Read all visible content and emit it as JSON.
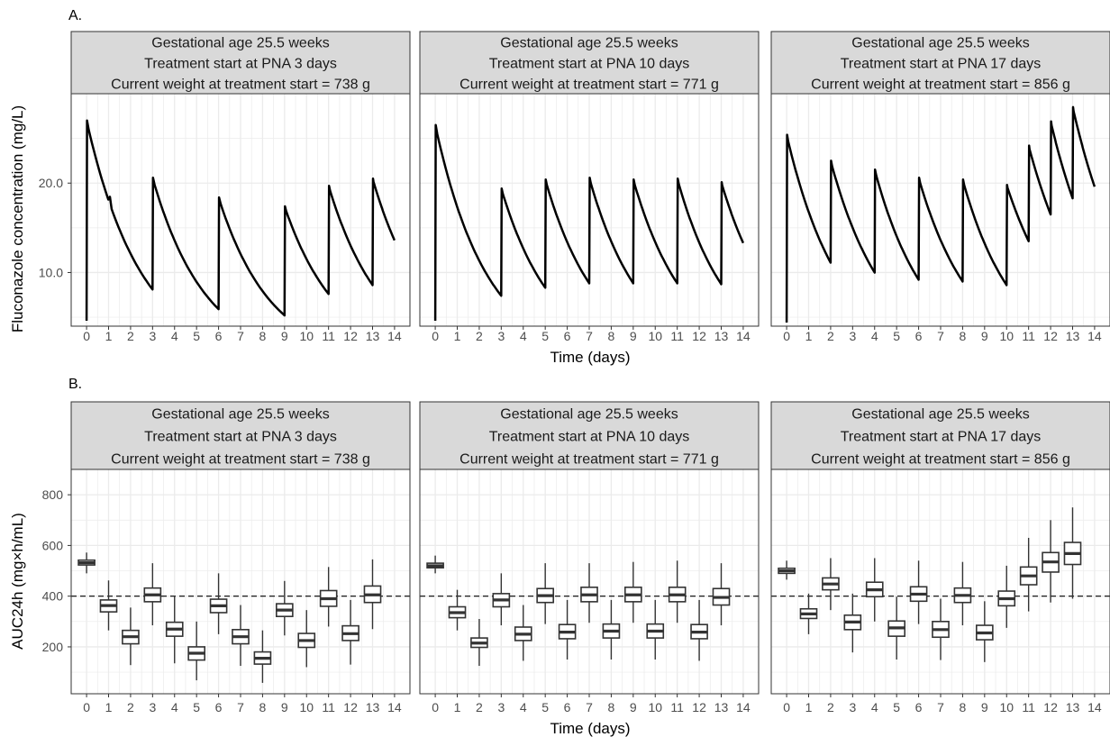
{
  "figure": {
    "panel_a_tag": "A.",
    "panel_b_tag": "B.",
    "strip_lines": [
      [
        "Gestational age 25.5 weeks",
        "Treatment start at PNA 3 days",
        "Current weight at treatment start = 738 g"
      ],
      [
        "Gestational age 25.5 weeks",
        "Treatment start at PNA 10 days",
        "Current weight at treatment start = 771 g"
      ],
      [
        "Gestational age 25.5 weeks",
        "Treatment start at PNA 17 days",
        "Current weight at treatment start = 856 g"
      ]
    ],
    "a_ylabel": "Fluconazole concentration (mg/L)",
    "b_ylabel": "AUC24h (mg×h/mL)",
    "xlabel": "Time (days)",
    "colors": {
      "strip_fill": "#d9d9d9",
      "grid": "#ebebeb",
      "line": "#000000",
      "box": "#333333"
    }
  },
  "chart_data": [
    {
      "type": "line",
      "panel": "A",
      "ylim": [
        4,
        30
      ],
      "xlim": [
        -0.7,
        14.7
      ],
      "y_ticks": [
        10,
        20
      ],
      "y_tick_labels": [
        "10.0",
        "20.0"
      ],
      "x_ticks": [
        0,
        1,
        2,
        3,
        4,
        5,
        6,
        7,
        8,
        9,
        10,
        11,
        12,
        13,
        14
      ],
      "grid": true,
      "facets": [
        {
          "dose_times": [
            0,
            3,
            6,
            9,
            11,
            13
          ],
          "start": 4.6,
          "peaks": [
            27.0,
            20.6,
            18.4,
            17.4,
            19.7,
            20.5
          ],
          "troughs": [
            8.1,
            5.9,
            5.2,
            7.6,
            8.6,
            13.6
          ],
          "kink": [
            1,
            18.6
          ]
        },
        {
          "dose_times": [
            0,
            3,
            5,
            7,
            9,
            11,
            13
          ],
          "start": 4.6,
          "peaks": [
            26.5,
            19.4,
            20.4,
            20.6,
            20.4,
            20.5,
            20.1
          ],
          "troughs": [
            7.4,
            8.3,
            8.8,
            8.8,
            8.8,
            8.7,
            13.3
          ]
        },
        {
          "dose_times": [
            0,
            2,
            4,
            6,
            8,
            10,
            11,
            12,
            13
          ],
          "start": 4.4,
          "peaks": [
            25.4,
            22.5,
            21.5,
            20.6,
            20.4,
            19.8,
            24.2,
            26.9,
            28.5
          ],
          "troughs": [
            11.1,
            10.0,
            9.2,
            9.0,
            8.6,
            13.5,
            16.5,
            18.3,
            19.6
          ]
        }
      ]
    },
    {
      "type": "box",
      "panel": "B",
      "ylim": [
        15,
        900
      ],
      "xlim": [
        -0.7,
        14.7
      ],
      "y_ticks": [
        200,
        400,
        600,
        800
      ],
      "y_tick_labels": [
        "200",
        "400",
        "600",
        "800"
      ],
      "x_ticks": [
        0,
        1,
        2,
        3,
        4,
        5,
        6,
        7,
        8,
        9,
        10,
        11,
        12,
        13,
        14
      ],
      "reference_line": 400,
      "grid": true,
      "facets": [
        {
          "boxes": [
            {
              "x": 0,
              "min": 490,
              "q1": 523,
              "med": 532,
              "q3": 542,
              "max": 572
            },
            {
              "x": 1,
              "min": 265,
              "q1": 338,
              "med": 363,
              "q3": 385,
              "max": 462
            },
            {
              "x": 2,
              "min": 128,
              "q1": 212,
              "med": 240,
              "q3": 265,
              "max": 355
            },
            {
              "x": 3,
              "min": 285,
              "q1": 378,
              "med": 405,
              "q3": 432,
              "max": 530
            },
            {
              "x": 4,
              "min": 135,
              "q1": 242,
              "med": 270,
              "q3": 297,
              "max": 402
            },
            {
              "x": 5,
              "min": 68,
              "q1": 148,
              "med": 175,
              "q3": 200,
              "max": 300
            },
            {
              "x": 6,
              "min": 250,
              "q1": 335,
              "med": 362,
              "q3": 388,
              "max": 490
            },
            {
              "x": 7,
              "min": 125,
              "q1": 212,
              "med": 240,
              "q3": 268,
              "max": 365
            },
            {
              "x": 8,
              "min": 58,
              "q1": 132,
              "med": 155,
              "q3": 180,
              "max": 265
            },
            {
              "x": 9,
              "min": 245,
              "q1": 320,
              "med": 345,
              "q3": 370,
              "max": 460
            },
            {
              "x": 10,
              "min": 120,
              "q1": 198,
              "med": 225,
              "q3": 253,
              "max": 345
            },
            {
              "x": 11,
              "min": 280,
              "q1": 360,
              "med": 390,
              "q3": 422,
              "max": 515
            },
            {
              "x": 12,
              "min": 130,
              "q1": 225,
              "med": 252,
              "q3": 283,
              "max": 385
            },
            {
              "x": 13,
              "min": 270,
              "q1": 375,
              "med": 405,
              "q3": 440,
              "max": 545
            }
          ]
        },
        {
          "boxes": [
            {
              "x": 0,
              "min": 490,
              "q1": 512,
              "med": 520,
              "q3": 530,
              "max": 560
            },
            {
              "x": 1,
              "min": 265,
              "q1": 315,
              "med": 335,
              "q3": 358,
              "max": 425
            },
            {
              "x": 2,
              "min": 125,
              "q1": 198,
              "med": 215,
              "q3": 235,
              "max": 310
            },
            {
              "x": 3,
              "min": 285,
              "q1": 358,
              "med": 385,
              "q3": 410,
              "max": 490
            },
            {
              "x": 4,
              "min": 145,
              "q1": 225,
              "med": 250,
              "q3": 278,
              "max": 365
            },
            {
              "x": 5,
              "min": 290,
              "q1": 375,
              "med": 402,
              "q3": 430,
              "max": 530
            },
            {
              "x": 6,
              "min": 150,
              "q1": 232,
              "med": 258,
              "q3": 288,
              "max": 385
            },
            {
              "x": 7,
              "min": 295,
              "q1": 378,
              "med": 405,
              "q3": 435,
              "max": 530
            },
            {
              "x": 8,
              "min": 150,
              "q1": 235,
              "med": 262,
              "q3": 290,
              "max": 385
            },
            {
              "x": 9,
              "min": 295,
              "q1": 378,
              "med": 405,
              "q3": 435,
              "max": 535
            },
            {
              "x": 10,
              "min": 150,
              "q1": 235,
              "med": 262,
              "q3": 290,
              "max": 385
            },
            {
              "x": 11,
              "min": 295,
              "q1": 378,
              "med": 405,
              "q3": 435,
              "max": 540
            },
            {
              "x": 12,
              "min": 145,
              "q1": 232,
              "med": 258,
              "q3": 288,
              "max": 385
            },
            {
              "x": 13,
              "min": 285,
              "q1": 365,
              "med": 395,
              "q3": 430,
              "max": 530
            }
          ]
        },
        {
          "boxes": [
            {
              "x": 0,
              "min": 465,
              "q1": 490,
              "med": 500,
              "q3": 510,
              "max": 540
            },
            {
              "x": 1,
              "min": 250,
              "q1": 312,
              "med": 330,
              "q3": 350,
              "max": 410
            },
            {
              "x": 2,
              "min": 345,
              "q1": 425,
              "med": 448,
              "q3": 472,
              "max": 550
            },
            {
              "x": 3,
              "min": 178,
              "q1": 268,
              "med": 298,
              "q3": 325,
              "max": 410
            },
            {
              "x": 4,
              "min": 300,
              "q1": 398,
              "med": 425,
              "q3": 455,
              "max": 550
            },
            {
              "x": 5,
              "min": 150,
              "q1": 242,
              "med": 275,
              "q3": 302,
              "max": 398
            },
            {
              "x": 6,
              "min": 290,
              "q1": 380,
              "med": 408,
              "q3": 437,
              "max": 540
            },
            {
              "x": 7,
              "min": 148,
              "q1": 238,
              "med": 268,
              "q3": 300,
              "max": 390
            },
            {
              "x": 8,
              "min": 285,
              "q1": 375,
              "med": 403,
              "q3": 432,
              "max": 535
            },
            {
              "x": 9,
              "min": 140,
              "q1": 228,
              "med": 255,
              "q3": 285,
              "max": 380
            },
            {
              "x": 10,
              "min": 275,
              "q1": 362,
              "med": 390,
              "q3": 420,
              "max": 520
            },
            {
              "x": 11,
              "min": 340,
              "q1": 445,
              "med": 480,
              "q3": 515,
              "max": 630
            },
            {
              "x": 12,
              "min": 375,
              "q1": 495,
              "med": 535,
              "q3": 572,
              "max": 700
            },
            {
              "x": 13,
              "min": 390,
              "q1": 525,
              "med": 568,
              "q3": 612,
              "max": 750
            }
          ]
        }
      ]
    }
  ]
}
